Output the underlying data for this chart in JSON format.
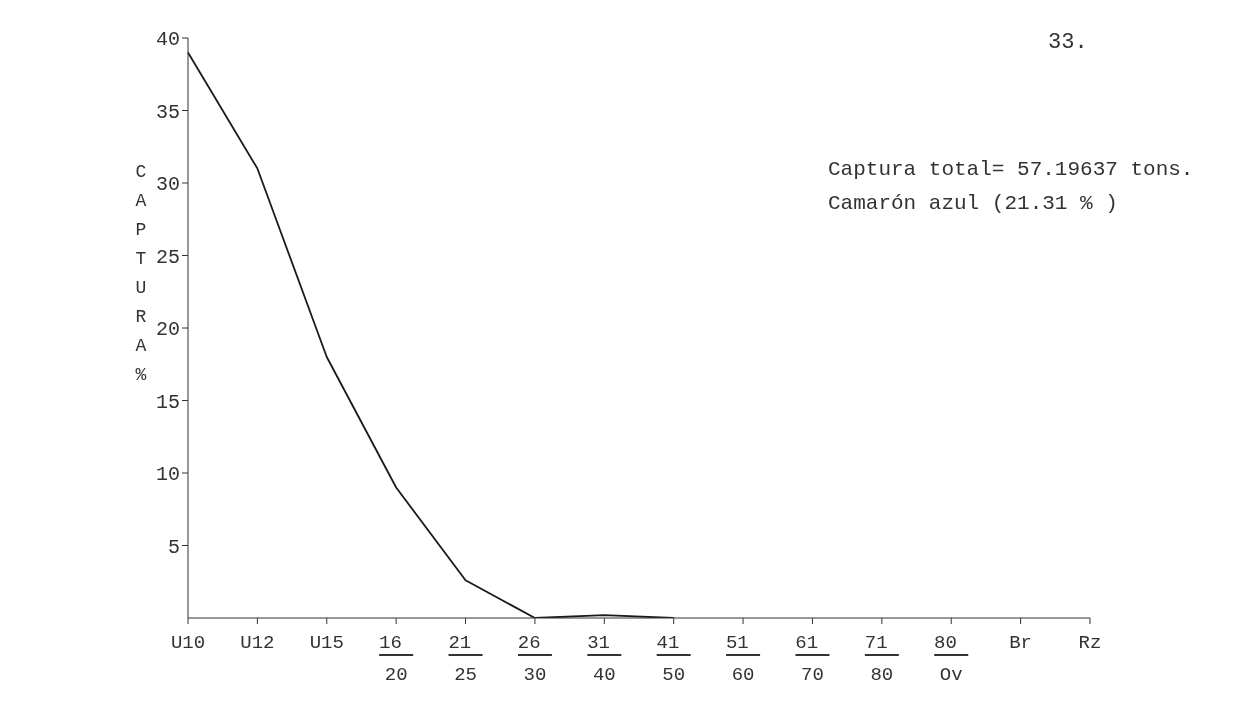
{
  "chart_data": {
    "type": "line",
    "ylabel": "CAPTURA %",
    "annotations": [
      "33.",
      "Captura total= 57.19637 tons.",
      "Camarón azul (21.31 % )"
    ],
    "categories": [
      "U10",
      "U12",
      "U15",
      "16\n20",
      "21\n25",
      "26\n30",
      "31\n40",
      "41\n50",
      "51\n60",
      "61\n70",
      "71\n80",
      "80\nOv",
      "Br",
      "Rz"
    ],
    "values": [
      39,
      31,
      18,
      9,
      2.6,
      0,
      0.2,
      0,
      null,
      null,
      null,
      null,
      null,
      null
    ],
    "color": "#1a1a1a",
    "ylim": [
      0,
      40
    ],
    "yticks": [
      5,
      10,
      15,
      20,
      25,
      30,
      35,
      40
    ],
    "marker": "none",
    "line_style": "solid"
  }
}
